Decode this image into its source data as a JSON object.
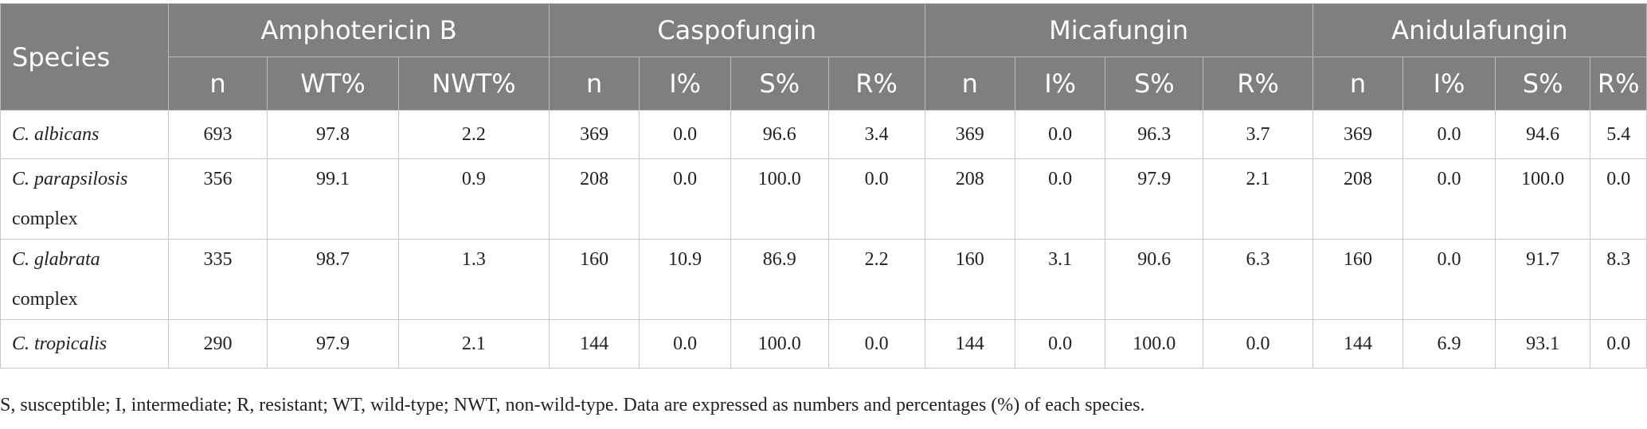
{
  "header": {
    "species": "Species",
    "groups": [
      "Amphotericin B",
      "Caspofungin",
      "Micafungin",
      "Anidulafungin"
    ],
    "subcols": [
      "n",
      "WT%",
      "NWT%",
      "n",
      "I%",
      "S%",
      "R%",
      "n",
      "I%",
      "S%",
      "R%",
      "n",
      "I%",
      "S%",
      "R%"
    ]
  },
  "rows": [
    {
      "species_italic": "C. albicans",
      "species_rest": "",
      "values": [
        "693",
        "97.8",
        "2.2",
        "369",
        "0.0",
        "96.6",
        "3.4",
        "369",
        "0.0",
        "96.3",
        "3.7",
        "369",
        "0.0",
        "94.6",
        "5.4"
      ]
    },
    {
      "species_italic": "C. parapsilosis",
      "species_rest": "complex",
      "values": [
        "356",
        "99.1",
        "0.9",
        "208",
        "0.0",
        "100.0",
        "0.0",
        "208",
        "0.0",
        "97.9",
        "2.1",
        "208",
        "0.0",
        "100.0",
        "0.0"
      ]
    },
    {
      "species_italic": "C. glabrata",
      "species_rest": "complex",
      "values": [
        "335",
        "98.7",
        "1.3",
        "160",
        "10.9",
        "86.9",
        "2.2",
        "160",
        "3.1",
        "90.6",
        "6.3",
        "160",
        "0.0",
        "91.7",
        "8.3"
      ]
    },
    {
      "species_italic": "C. tropicalis",
      "species_rest": "",
      "values": [
        "290",
        "97.9",
        "2.1",
        "144",
        "0.0",
        "100.0",
        "0.0",
        "144",
        "0.0",
        "100.0",
        "0.0",
        "144",
        "6.9",
        "93.1",
        "0.0"
      ]
    }
  ],
  "footnote": "S, susceptible; I, intermediate; R, resistant; WT, wild-type; NWT, non-wild-type. Data are expressed as numbers and percentages (%) of each species."
}
